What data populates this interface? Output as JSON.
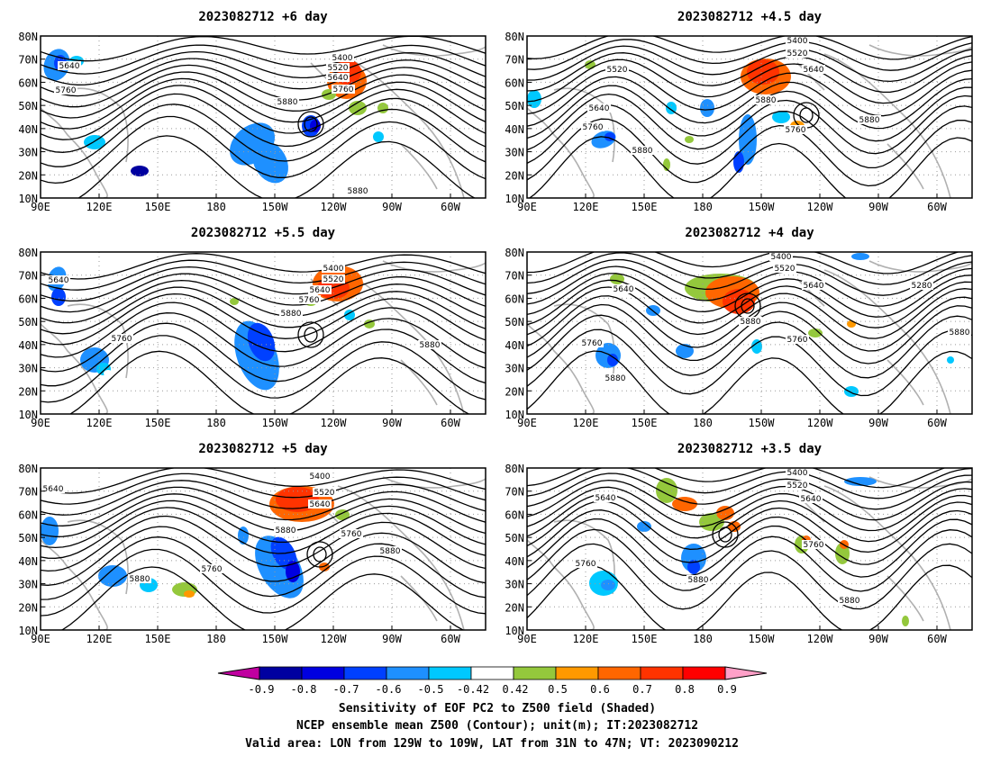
{
  "panels": [
    {
      "title": "2023082712 +6 day",
      "contour_labels": [
        "5640",
        "5760",
        "5400",
        "5520",
        "5640",
        "5760",
        "5880",
        "5880"
      ]
    },
    {
      "title": "2023082712 +4.5 day",
      "contour_labels": [
        "5400",
        "5520",
        "5520",
        "5640",
        "5640",
        "5880",
        "5760",
        "5880",
        "5760",
        "5880"
      ]
    },
    {
      "title": "2023082712 +5.5 day",
      "contour_labels": [
        "5640",
        "5760",
        "5400",
        "5520",
        "5640",
        "5760",
        "5880",
        "5880"
      ]
    },
    {
      "title": "2023082712 +4 day",
      "contour_labels": [
        "5400",
        "5520",
        "5640",
        "5640",
        "5280",
        "5760",
        "5880",
        "5760",
        "5880",
        "5880"
      ]
    },
    {
      "title": "2023082712 +5 day",
      "contour_labels": [
        "5640",
        "5400",
        "5520",
        "5640",
        "5880",
        "5760",
        "5760",
        "5880",
        "5880"
      ]
    },
    {
      "title": "2023082712 +3.5 day",
      "contour_labels": [
        "5400",
        "5520",
        "5640",
        "5640",
        "5760",
        "5880",
        "5760",
        "5880"
      ]
    }
  ],
  "axes": {
    "lat_labels": [
      "80N",
      "70N",
      "60N",
      "50N",
      "40N",
      "30N",
      "20N",
      "10N"
    ],
    "lon_labels": [
      "90E",
      "120E",
      "150E",
      "180",
      "150W",
      "120W",
      "90W",
      "60W"
    ]
  },
  "colorbar": {
    "labels": [
      "-0.9",
      "-0.8",
      "-0.7",
      "-0.6",
      "-0.5",
      "-0.42",
      "0.42",
      "0.5",
      "0.6",
      "0.7",
      "0.8",
      "0.9"
    ],
    "colors": [
      "#0000a0",
      "#0000e0",
      "#0040ff",
      "#1e90ff",
      "#00c8ff",
      "#ffffff",
      "#94c83c",
      "#ff9900",
      "#ff6600",
      "#ff3300",
      "#ff0000"
    ],
    "low_extend_color": "#c000a0",
    "high_extend_color": "#ffa0c8"
  },
  "caption": {
    "line1": "Sensitivity of EOF PC2 to Z500 field (Shaded)",
    "line2": "NCEP ensemble mean Z500 (Contour); unit(m); IT:2023082712",
    "line3": "Valid area: LON from 129W to 109W, LAT from 31N to 47N; VT: 2023090212"
  }
}
